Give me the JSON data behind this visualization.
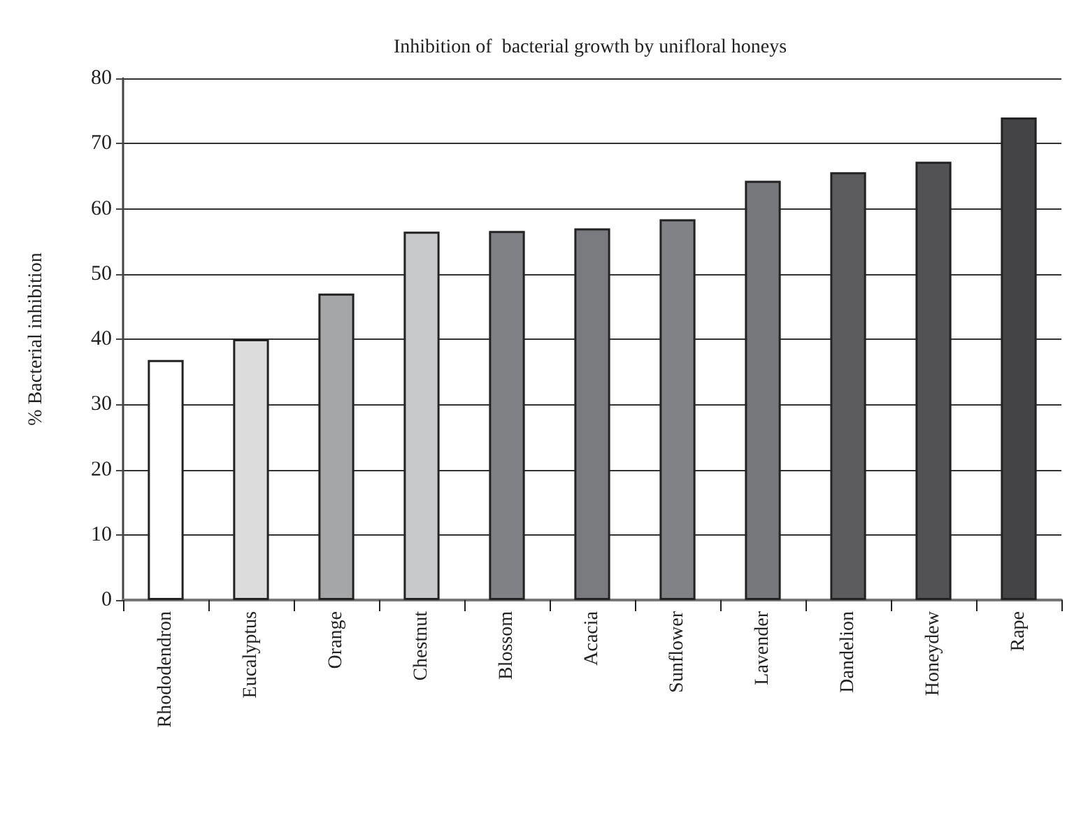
{
  "chart_data": {
    "type": "bar",
    "title": "Inhibition of  bacterial growth by unifloral honeys",
    "ylabel": "% Bacterial inhibition",
    "categories": [
      "Rhododendron",
      "Eucalyptus",
      "Orange",
      "Chestnut",
      "Blossom",
      "Acacia",
      "Sunflower",
      "Lavender",
      "Dandelion",
      "Honeydew",
      "Rape"
    ],
    "values": [
      36.8,
      40,
      47,
      56.5,
      56.6,
      57,
      58.4,
      64.3,
      65.6,
      67.2,
      74
    ],
    "colors": [
      "#ffffff",
      "#dcdcdc",
      "#a5a6a8",
      "#c8c9cb",
      "#808184",
      "#7a7b7e",
      "#818285",
      "#77787b",
      "#5c5c5e",
      "#525254",
      "#444446"
    ],
    "ylim": [
      0,
      80
    ],
    "yticks": [
      0,
      10,
      20,
      30,
      40,
      50,
      60,
      70,
      80
    ],
    "grid": "y"
  }
}
